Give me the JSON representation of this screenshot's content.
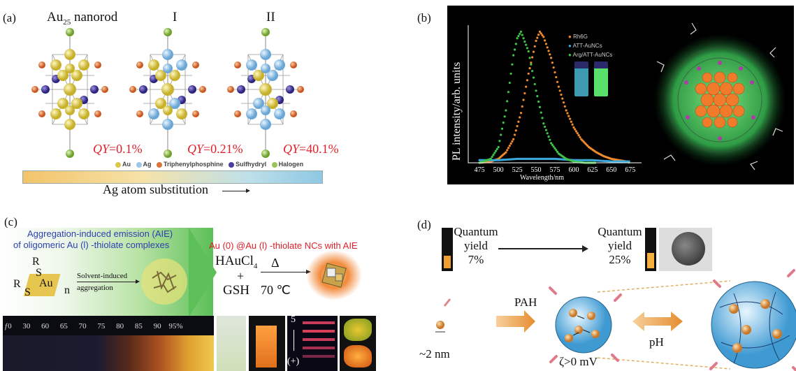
{
  "panel_a": {
    "label": "(a)",
    "titles": [
      {
        "base": "Au",
        "sub": "25",
        "rest": " nanorod"
      },
      {
        "base": "I",
        "sub": "",
        "rest": ""
      },
      {
        "base": "II",
        "sub": "",
        "rest": ""
      }
    ],
    "qy": [
      "=0.1%",
      "=0.21%",
      "=40.1%"
    ],
    "qy_prefix": "QY",
    "legend": [
      {
        "label": "Au",
        "color": "#d8c94a"
      },
      {
        "label": "Ag",
        "color": "#9cc7e6"
      },
      {
        "label": "Triphenylphosphine",
        "color": "#d9743a"
      },
      {
        "label": "Sulfhydryl",
        "color": "#4a3fa0"
      },
      {
        "label": "Halogen",
        "color": "#9bc35a"
      }
    ],
    "caption": "Ag atom substitution"
  },
  "panel_b": {
    "label": "(b)",
    "ylabel": "PL intensity/arb. units",
    "xlabel": "Wavelength/nm",
    "legend": [
      {
        "label": "Rh6G",
        "color": "#f08a2c"
      },
      {
        "label": "ATT-AuNCs",
        "color": "#3aa7d8"
      },
      {
        "label": "Arg/ATT-AuNCs",
        "color": "#3ec24a"
      }
    ]
  },
  "chart_data": {
    "type": "scatter",
    "title": "",
    "xlabel": "Wavelength/nm",
    "ylabel": "PL intensity/arb. units",
    "xlim": [
      460,
      690
    ],
    "ylim": [
      0,
      1.05
    ],
    "xticks": [
      475,
      500,
      525,
      550,
      575,
      600,
      625,
      650,
      675
    ],
    "grid": false,
    "legend_position": "top-right",
    "series": [
      {
        "name": "Rh6G",
        "color": "#f08a2c",
        "x": [
          475,
          490,
          500,
          510,
          520,
          530,
          540,
          550,
          555,
          560,
          570,
          580,
          590,
          600,
          610,
          620,
          630,
          640,
          650,
          660,
          670,
          675
        ],
        "y": [
          0,
          0.01,
          0.03,
          0.08,
          0.18,
          0.38,
          0.68,
          0.93,
          1.0,
          0.96,
          0.8,
          0.58,
          0.4,
          0.27,
          0.18,
          0.12,
          0.08,
          0.05,
          0.03,
          0.02,
          0.01,
          0.0
        ]
      },
      {
        "name": "ATT-AuNCs",
        "color": "#3aa7d8",
        "x": [
          475,
          500,
          525,
          550,
          575,
          600,
          625,
          650,
          675
        ],
        "y": [
          0.02,
          0.02,
          0.03,
          0.03,
          0.03,
          0.02,
          0.02,
          0.01,
          0.01
        ]
      },
      {
        "name": "Arg/ATT-AuNCs",
        "color": "#3ec24a",
        "x": [
          475,
          490,
          500,
          510,
          520,
          525,
          530,
          540,
          550,
          560,
          570,
          580,
          590,
          600,
          615,
          630
        ],
        "y": [
          0,
          0.03,
          0.12,
          0.4,
          0.82,
          0.95,
          1.0,
          0.85,
          0.55,
          0.3,
          0.15,
          0.07,
          0.03,
          0.01,
          0.0,
          0.0
        ]
      }
    ]
  },
  "panel_c": {
    "label": "(c)",
    "aie_title_1": "Aggregation-induced emission (AIE)",
    "aie_title_2": "of oligomeric Au (l) -thiolate complexes",
    "right_title": "Au (0) @Au (l) -thiolate NCs with AIE",
    "solvent_1": "Solvent-induced",
    "solvent_2": "aggregation",
    "r_top": "R",
    "s_top": "S",
    "au": "Au",
    "s_left": "S",
    "r_left": "R",
    "n": "n",
    "reagent_1_base": "HAuCl",
    "reagent_1_sub": "4",
    "plus": "+",
    "reagent_2": "GSH",
    "delta": "Δ",
    "temp": "70 ℃",
    "fractions": [
      "0",
      "30",
      "60",
      "65",
      "70",
      "75",
      "80",
      "85",
      "90",
      "95%"
    ],
    "gel_top": "5",
    "gel_bottom": "(+)",
    "fraction_symbol": "f"
  },
  "panel_d": {
    "label": "(d)",
    "qy_left_1": "Quantum",
    "qy_left_2": "yield",
    "qy_left_3": "7%",
    "qy_right_1": "Quantum",
    "qy_right_2": "yield",
    "qy_right_3": "25%",
    "size": "~2 nm",
    "pah": "PAH",
    "zeta": "ζ>0 mV",
    "ph": "pH"
  }
}
